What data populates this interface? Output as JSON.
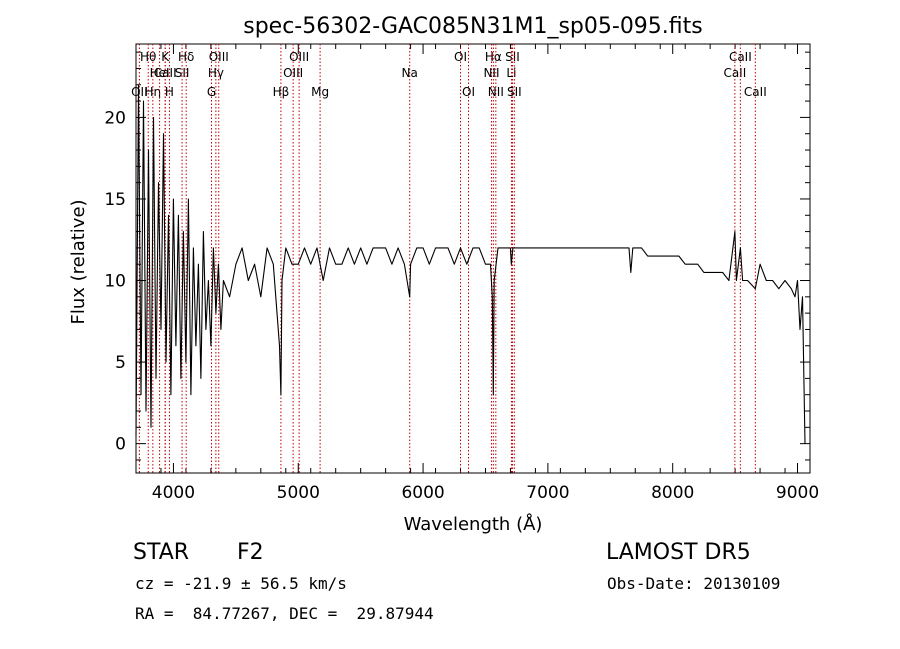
{
  "chart_data": {
    "type": "line",
    "title": "spec-56302-GAC085N31M1_sp05-095.fits",
    "xlabel": "Wavelength (Å)",
    "ylabel": "Flux (relative)",
    "xlim": [
      3700,
      9100
    ],
    "ylim": [
      -1.8,
      24.5
    ],
    "xticks": [
      4000,
      5000,
      6000,
      7000,
      8000,
      9000
    ],
    "yticks": [
      0,
      5,
      10,
      15,
      20
    ],
    "grid": false,
    "line_color": "#000000",
    "marker_color": "#c00000",
    "spectrum": {
      "name": "flux",
      "x": [
        3700,
        3720,
        3740,
        3760,
        3780,
        3800,
        3820,
        3840,
        3860,
        3880,
        3900,
        3920,
        3940,
        3960,
        3980,
        4000,
        4020,
        4040,
        4060,
        4080,
        4100,
        4120,
        4140,
        4160,
        4180,
        4200,
        4220,
        4240,
        4260,
        4280,
        4300,
        4320,
        4340,
        4360,
        4380,
        4400,
        4450,
        4500,
        4550,
        4600,
        4650,
        4700,
        4750,
        4800,
        4850,
        4861,
        4870,
        4900,
        4950,
        5000,
        5050,
        5100,
        5150,
        5200,
        5250,
        5300,
        5350,
        5400,
        5450,
        5500,
        5550,
        5600,
        5650,
        5700,
        5750,
        5800,
        5850,
        5893,
        5900,
        5950,
        6000,
        6050,
        6100,
        6150,
        6200,
        6250,
        6300,
        6350,
        6400,
        6450,
        6500,
        6540,
        6555,
        6563,
        6570,
        6585,
        6600,
        6650,
        6700,
        6707,
        6720,
        6750,
        6800,
        6850,
        6900,
        6950,
        7000,
        7050,
        7100,
        7150,
        7200,
        7250,
        7300,
        7350,
        7400,
        7450,
        7500,
        7550,
        7600,
        7650,
        7664,
        7680,
        7700,
        7750,
        7800,
        7850,
        7900,
        7950,
        8000,
        8050,
        8100,
        8150,
        8200,
        8250,
        8300,
        8350,
        8400,
        8450,
        8498,
        8510,
        8542,
        8560,
        8600,
        8662,
        8700,
        8750,
        8800,
        8850,
        8900,
        8950,
        8980,
        9000,
        9020,
        9040,
        9060
      ],
      "y": [
        0.5,
        22,
        3,
        21,
        2,
        18,
        1,
        20,
        4,
        16,
        7,
        19,
        5,
        14,
        3,
        15,
        6,
        14,
        4,
        13,
        5,
        15,
        3,
        12,
        6,
        11,
        4,
        13,
        7,
        10,
        6,
        12,
        8,
        11,
        7,
        10,
        9,
        11,
        12,
        10,
        11,
        9,
        12,
        11,
        6,
        3,
        10,
        12,
        11,
        11,
        12,
        11,
        12,
        10,
        12,
        11,
        11,
        12,
        11,
        12,
        11,
        12,
        12,
        12,
        11,
        12,
        11,
        9,
        11,
        12,
        12,
        11,
        12,
        12,
        12,
        11,
        12,
        11,
        12,
        12,
        11,
        11,
        9,
        3,
        10,
        11,
        12,
        12,
        12,
        11,
        12,
        12,
        12,
        12,
        12,
        12,
        12,
        12,
        12,
        12,
        12,
        12,
        12,
        12,
        12,
        12,
        12,
        12,
        12,
        12,
        10.5,
        12,
        12,
        12,
        11.5,
        11.5,
        11.5,
        11.5,
        11.5,
        11.5,
        11,
        11,
        11,
        10.5,
        10.5,
        10.5,
        10.5,
        10,
        13,
        10,
        12,
        10,
        10,
        9.5,
        11,
        10,
        10,
        9.5,
        10,
        9.5,
        9,
        10,
        7,
        9,
        0
      ]
    },
    "lines": [
      {
        "label": "Hθ",
        "wavelength": 3798,
        "row": 1
      },
      {
        "label": "Hη",
        "wavelength": 3835,
        "row": 3
      },
      {
        "label": "CaII",
        "wavelength": 3934,
        "row": 2
      },
      {
        "label": "K",
        "wavelength": 3934,
        "row": 1
      },
      {
        "label": "H",
        "wavelength": 3968,
        "row": 3
      },
      {
        "label": "OII",
        "wavelength": 3727,
        "row": 3
      },
      {
        "label": "HeI",
        "wavelength": 3889,
        "row": 2
      },
      {
        "label": "SII",
        "wavelength": 4069,
        "row": 2
      },
      {
        "label": "Hδ",
        "wavelength": 4102,
        "row": 1
      },
      {
        "label": "Hγ",
        "wavelength": 4340,
        "row": 2
      },
      {
        "label": "G",
        "wavelength": 4305,
        "row": 3
      },
      {
        "label": "OIII",
        "wavelength": 4363,
        "row": 1
      },
      {
        "label": "Hβ",
        "wavelength": 4861,
        "row": 3
      },
      {
        "label": "OIII",
        "wavelength": 4959,
        "row": 2
      },
      {
        "label": "OIII",
        "wavelength": 5007,
        "row": 1
      },
      {
        "label": "Mg",
        "wavelength": 5175,
        "row": 3
      },
      {
        "label": "Na",
        "wavelength": 5893,
        "row": 2
      },
      {
        "label": "OI",
        "wavelength": 6300,
        "row": 1
      },
      {
        "label": "OI",
        "wavelength": 6364,
        "row": 3
      },
      {
        "label": "Hα",
        "wavelength": 6563,
        "row": 1
      },
      {
        "label": "NII",
        "wavelength": 6548,
        "row": 2
      },
      {
        "label": "NII",
        "wavelength": 6583,
        "row": 3
      },
      {
        "label": "SII",
        "wavelength": 6716,
        "row": 1
      },
      {
        "label": "Li",
        "wavelength": 6708,
        "row": 2
      },
      {
        "label": "SII",
        "wavelength": 6731,
        "row": 3
      },
      {
        "label": "CaII",
        "wavelength": 8498,
        "row": 2
      },
      {
        "label": "CaII",
        "wavelength": 8542,
        "row": 1
      },
      {
        "label": "CaII",
        "wavelength": 8662,
        "row": 3
      }
    ]
  },
  "info": {
    "classification": "STAR",
    "subclass": "F2",
    "survey": "LAMOST DR5",
    "cz": "cz = -21.9 ± 56.5 km/s",
    "obs_date": "Obs-Date: 20130109",
    "radec": "RA =  84.77267, DEC =  29.87944"
  }
}
